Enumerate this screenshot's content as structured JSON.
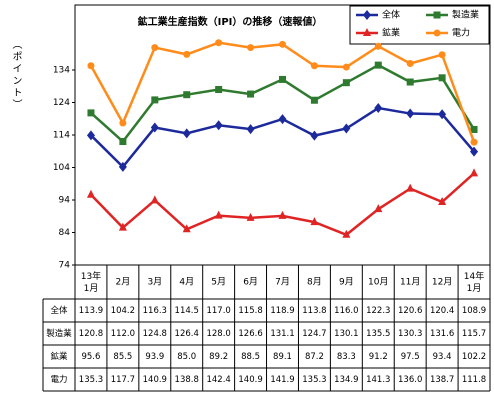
{
  "chart_data": {
    "type": "line",
    "title": "鉱工業生産指数（IPI）の推移（速報値）",
    "y_label": "（ポイント）",
    "categories": [
      "13年\n1月",
      "2月",
      "3月",
      "4月",
      "5月",
      "6月",
      "7月",
      "8月",
      "9月",
      "10月",
      "11月",
      "12月",
      "14年\n1月"
    ],
    "ylim": [
      74,
      154
    ],
    "yticks": [
      74,
      84,
      94,
      104,
      114,
      124,
      134
    ],
    "legend": "top-right",
    "series": [
      {
        "name": "全体",
        "color": "#1c2a9c",
        "marker": "diamond",
        "values": [
          113.9,
          104.2,
          116.3,
          114.5,
          117.0,
          115.8,
          118.9,
          113.8,
          116.0,
          122.3,
          120.6,
          120.4,
          108.9
        ],
        "value_labels": [
          "113.9",
          "104.2",
          "116.3",
          "114.5",
          "117.0",
          "115.8",
          "118.9",
          "113.8",
          "116.0",
          "122.3",
          "120.6",
          "120.4",
          "108.9"
        ]
      },
      {
        "name": "製造業",
        "color": "#2e7a2e",
        "marker": "square",
        "values": [
          120.8,
          112.0,
          124.8,
          126.4,
          128.0,
          126.6,
          131.1,
          124.7,
          130.1,
          135.5,
          130.3,
          131.6,
          115.7
        ],
        "value_labels": [
          "120.8",
          "112.0",
          "124.8",
          "126.4",
          "128.0",
          "126.6",
          "131.1",
          "124.7",
          "130.1",
          "135.5",
          "130.3",
          "131.6",
          "115.7"
        ]
      },
      {
        "name": "鉱業",
        "color": "#e02424",
        "marker": "triangle",
        "values": [
          95.6,
          85.5,
          93.9,
          85.0,
          89.2,
          88.5,
          89.1,
          87.2,
          83.3,
          91.2,
          97.5,
          93.4,
          102.2
        ],
        "value_labels": [
          "95.6",
          "85.5",
          "93.9",
          "85.0",
          "89.2",
          "88.5",
          "89.1",
          "87.2",
          "83.3",
          "91.2",
          "97.5",
          "93.4",
          "102.2"
        ]
      },
      {
        "name": "電力",
        "color": "#ff8c1a",
        "marker": "circle",
        "values": [
          135.3,
          117.7,
          140.9,
          138.8,
          142.4,
          140.9,
          141.9,
          135.3,
          134.9,
          141.3,
          136.0,
          138.7,
          111.8
        ],
        "value_labels": [
          "135.3",
          "117.7",
          "140.9",
          "138.8",
          "142.4",
          "140.9",
          "141.9",
          "135.3",
          "134.9",
          "141.3",
          "136.0",
          "138.7",
          "111.8"
        ]
      }
    ]
  }
}
